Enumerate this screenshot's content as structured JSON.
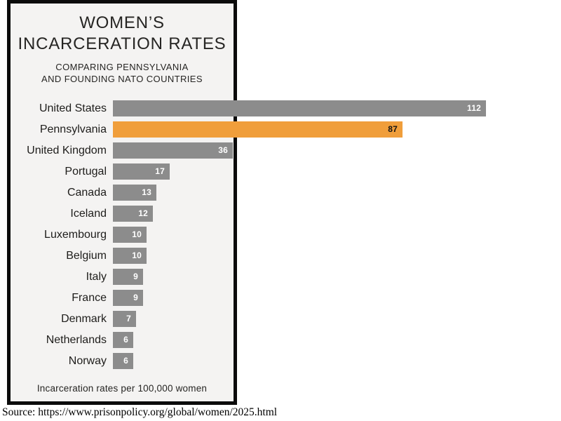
{
  "title": {
    "line1": "WOMEN’S",
    "line2": "INCARCERATION RATES"
  },
  "subtitle": {
    "line1": "COMPARING PENNSYLVANIA",
    "line2": "AND FOUNDING NATO COUNTRIES"
  },
  "footnote": "Incarceration rates per 100,000 women",
  "source": "Source: https://www.prisonpolicy.org/global/women/2025.html",
  "colors": {
    "bar_default": "#8c8c8c",
    "bar_highlight": "#f09e3b",
    "value_text_default": "#ffffff",
    "value_text_highlight": "#121212",
    "frame_background": "#f4f3f2",
    "frame_border": "#0b0b0b"
  },
  "chart_data": {
    "type": "bar",
    "orientation": "horizontal",
    "title": "WOMEN'S INCARCERATION RATES",
    "subtitle": "COMPARING PENNSYLVANIA AND FOUNDING NATO COUNTRIES",
    "xlabel": "Incarceration rates per 100,000 women",
    "axis_visible": false,
    "grid": false,
    "legend": "none",
    "value_labels": "inside-end",
    "xlim": [
      0,
      120
    ],
    "categories": [
      "United States",
      "Pennsylvania",
      "United Kingdom",
      "Portugal",
      "Canada",
      "Iceland",
      "Luxembourg",
      "Belgium",
      "Italy",
      "France",
      "Denmark",
      "Netherlands",
      "Norway"
    ],
    "values": [
      112,
      87,
      36,
      17,
      13,
      12,
      10,
      10,
      9,
      9,
      7,
      6,
      6
    ],
    "highlight_category": "Pennsylvania",
    "highlight_index": 1
  }
}
